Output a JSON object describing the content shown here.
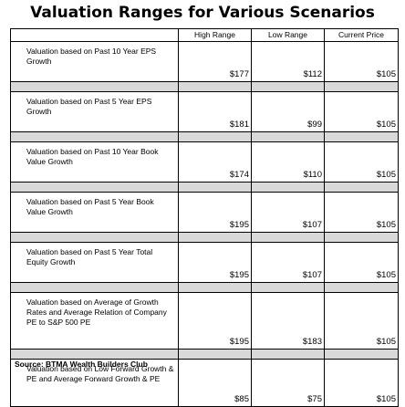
{
  "title": "Valuation Ranges for Various Scenarios",
  "columns": [
    "High Range",
    "Low Range",
    "Current Price"
  ],
  "rows": [
    {
      "label": "Valuation based on Past 10 Year EPS Growth",
      "high": "$177",
      "low": "$112",
      "current": "$105"
    },
    {
      "label": "Valuation based on Past 5 Year EPS Growth",
      "high": "$181",
      "low": "$99",
      "current": "$105"
    },
    {
      "label": "Valuation based on Past 10 Year Book Value Growth",
      "high": "$174",
      "low": "$110",
      "current": "$105"
    },
    {
      "label": "Valuation based on Past 5 Year Book Value Growth",
      "high": "$195",
      "low": "$107",
      "current": "$105"
    },
    {
      "label": "Valuation based on Past 5 Year Total Equity Growth",
      "high": "$195",
      "low": "$107",
      "current": "$105"
    },
    {
      "label": "Valuation based on Average of Growth Rates and Average Relation of Company PE to S&P 500 PE",
      "high": "$195",
      "low": "$183",
      "current": "$105"
    },
    {
      "label": "Valuation based on Low Forward Growth & PE and Average Forward Growth & PE",
      "high": "$85",
      "low": "$75",
      "current": "$105"
    }
  ],
  "source": "Source: BTMA Wealth Builders Club"
}
